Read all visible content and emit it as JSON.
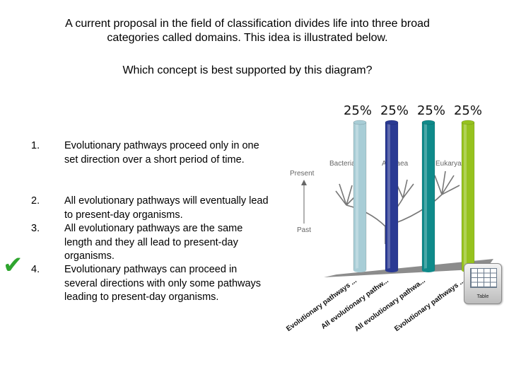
{
  "question": {
    "line1": "A current proposal in the field of classification divides life into three broad",
    "line2": "categories called domains. This idea is illustrated below.",
    "prompt": "Which concept is best supported by this diagram?"
  },
  "answers": [
    {
      "number": "1.",
      "text": "Evolutionary pathways proceed only in one set direction over a short period of time."
    },
    {
      "number": "2.",
      "text": "All evolutionary pathways will eventually lead to present-day organisms."
    },
    {
      "number": "3.",
      "text": "All evolutionary pathways are the same length and they all lead to present-day organisms."
    },
    {
      "number": "4.",
      "text": "Evolutionary pathways can proceed in several directions with only some pathways leading to present-day organisms."
    }
  ],
  "correct_mark": "✔",
  "diagram": {
    "present_label": "Present",
    "past_label": "Past",
    "domain_labels": [
      "Bacteria",
      "Archaea",
      "Eukarya"
    ]
  },
  "table_icon": {
    "label": "Table",
    "icon": "table-grid-icon"
  },
  "chart_data": {
    "type": "bar",
    "categories": [
      "Evolutionary pathways ...",
      "All evolutionary pathw...",
      "All evolutionary pathwa...",
      "Evolutionary pathways ..."
    ],
    "values": [
      25,
      25,
      25,
      25
    ],
    "value_labels": [
      "25%",
      "25%",
      "25%",
      "25%"
    ],
    "colors": [
      "#a8cdd6",
      "#2a3a93",
      "#0f8a8a",
      "#96c21e"
    ],
    "ylim": [
      0,
      25
    ],
    "grid": false
  }
}
